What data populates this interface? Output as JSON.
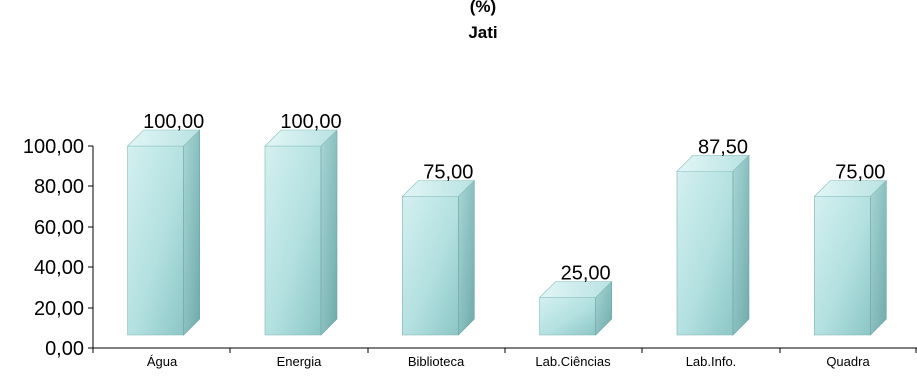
{
  "chart_data": {
    "type": "bar",
    "title_lines": [
      "(%)",
      "Jati"
    ],
    "categories": [
      "Água",
      "Energia",
      "Biblioteca",
      "Lab.Ciências",
      "Lab.Info.",
      "Quadra"
    ],
    "values": [
      100.0,
      100.0,
      75.0,
      25.0,
      87.5,
      75.0
    ],
    "value_labels": [
      "100,00",
      "100,00",
      "75,00",
      "25,00",
      "87,50",
      "75,00"
    ],
    "ylim": [
      0,
      100
    ],
    "yticks": [
      "0,00",
      "20,00",
      "40,00",
      "60,00",
      "80,00",
      "100,00"
    ],
    "grid": false,
    "legend": "none",
    "colors": {
      "bar_front": "#b7e3e3",
      "bar_side": "#8fc4c4",
      "bar_top": "#c9ecec",
      "axis": "#000000"
    }
  }
}
